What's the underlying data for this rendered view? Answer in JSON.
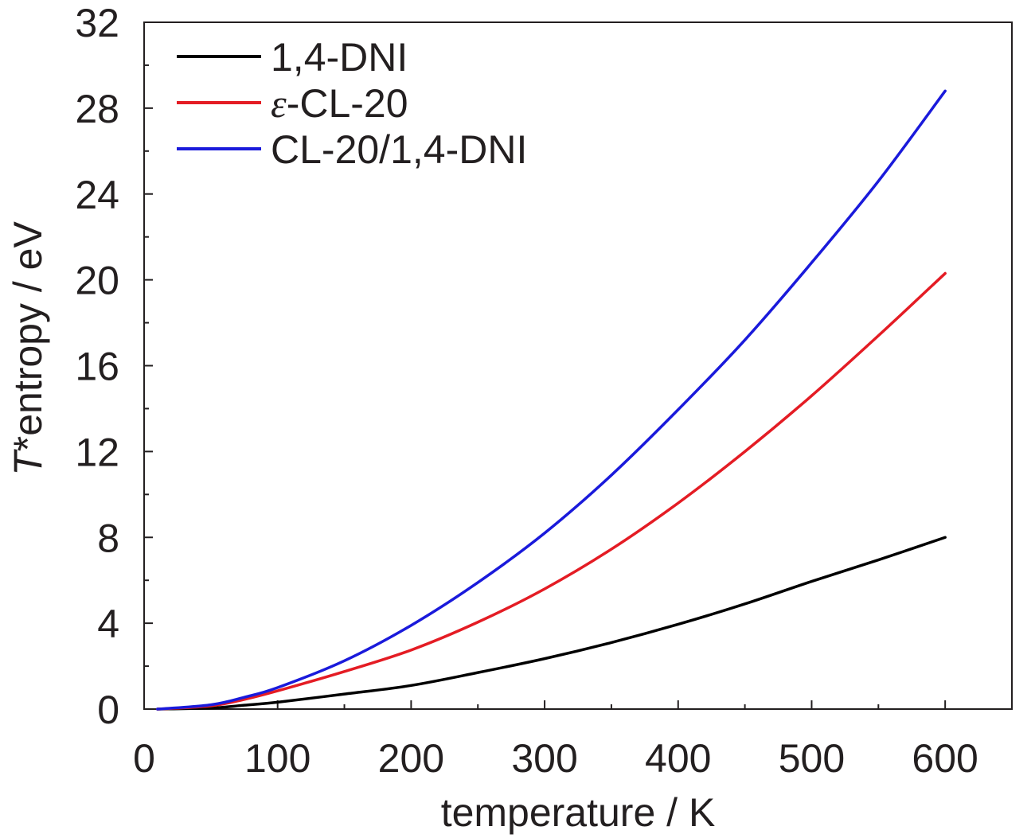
{
  "chart_data": {
    "type": "line",
    "xlabel": "temperature / K",
    "ylabel": {
      "italic": "T",
      "rest": "*entropy / eV"
    },
    "xlim": [
      0,
      650
    ],
    "ylim": [
      0,
      32
    ],
    "xticks": [
      0,
      100,
      200,
      300,
      400,
      500,
      600
    ],
    "yticks": [
      0,
      4,
      8,
      12,
      16,
      20,
      24,
      28,
      32
    ],
    "grid": false,
    "legend_position": "top-left",
    "series": [
      {
        "name": "1,4-DNI",
        "color": "#000000",
        "x": [
          10,
          50,
          75,
          100,
          150,
          200,
          250,
          300,
          350,
          400,
          450,
          500,
          550,
          600
        ],
        "y": [
          0,
          0.05,
          0.18,
          0.32,
          0.7,
          1.1,
          1.7,
          2.35,
          3.1,
          3.95,
          4.9,
          5.95,
          6.95,
          8.0
        ]
      },
      {
        "name": "ε-CL-20",
        "name_prefix": "ε",
        "name_suffix": "-CL-20",
        "color": "#e41c24",
        "x": [
          10,
          50,
          75,
          100,
          150,
          200,
          250,
          300,
          350,
          400,
          450,
          500,
          550,
          600
        ],
        "y": [
          0,
          0.15,
          0.45,
          0.85,
          1.75,
          2.75,
          4.05,
          5.6,
          7.45,
          9.6,
          12.0,
          14.6,
          17.4,
          20.3
        ]
      },
      {
        "name": "CL-20/1,4-DNI",
        "color": "#1a1adb",
        "x": [
          10,
          50,
          75,
          100,
          150,
          200,
          250,
          300,
          350,
          400,
          450,
          500,
          550,
          600
        ],
        "y": [
          0,
          0.2,
          0.55,
          1.0,
          2.25,
          3.9,
          5.9,
          8.2,
          10.9,
          13.95,
          17.2,
          20.8,
          24.6,
          28.8
        ]
      }
    ]
  }
}
